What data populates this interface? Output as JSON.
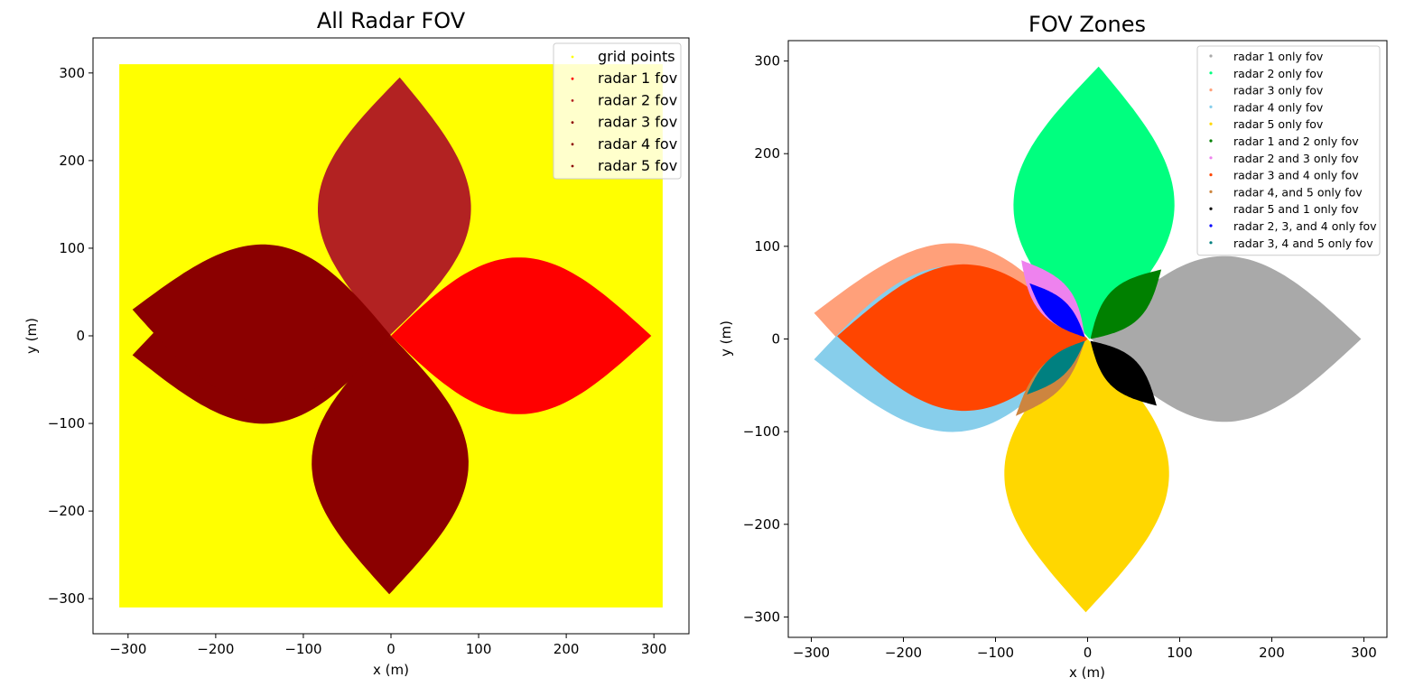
{
  "chart_data": [
    {
      "type": "scatter",
      "title": "All Radar FOV",
      "xlabel": "x (m)",
      "ylabel": "y (m)",
      "xlim": [
        -340,
        340
      ],
      "ylim": [
        -340,
        340
      ],
      "xticks": [
        -300,
        -200,
        -100,
        0,
        100,
        200,
        300
      ],
      "yticks": [
        -300,
        -200,
        -100,
        0,
        100,
        200,
        300
      ],
      "xtick_labels": [
        "−300",
        "−200",
        "−100",
        "0",
        "100",
        "200",
        "300"
      ],
      "ytick_labels": [
        "−300",
        "−200",
        "−100",
        "0",
        "100",
        "200",
        "300"
      ],
      "grid": false,
      "legend_position": "top-right",
      "grid_points_extent": {
        "x": [
          -310,
          310
        ],
        "y": [
          -310,
          310
        ]
      },
      "series": [
        {
          "name": "grid points",
          "color": "#ffff00"
        },
        {
          "name": "radar 1 fov",
          "color": "#ff0000",
          "sensor_at": [
            0,
            0
          ],
          "tip": [
            297,
            0
          ],
          "half_width": 86,
          "heading_deg": 0
        },
        {
          "name": "radar 2 fov",
          "color": "#b22222",
          "sensor_at": [
            -2,
            0
          ],
          "tip": [
            10,
            295
          ],
          "half_width": 84,
          "heading_deg": 88
        },
        {
          "name": "radar 3 fov",
          "color": "#8b0000",
          "sensor_at": [
            0,
            0
          ],
          "tip": [
            -295,
            30
          ],
          "half_width": 86,
          "heading_deg": 174
        },
        {
          "name": "radar 4 fov",
          "color": "#8b0000",
          "sensor_at": [
            0,
            0
          ],
          "tip": [
            -295,
            -22
          ],
          "half_width": 86,
          "heading_deg": 184
        },
        {
          "name": "radar 5 fov",
          "color": "#8b0000",
          "sensor_at": [
            0,
            0
          ],
          "tip": [
            -2,
            -295
          ],
          "half_width": 86,
          "heading_deg": 270
        }
      ]
    },
    {
      "type": "scatter",
      "title": "FOV Zones",
      "xlabel": "x (m)",
      "ylabel": "y (m)",
      "xlim": [
        -325,
        325
      ],
      "ylim": [
        -322,
        322
      ],
      "xticks": [
        -300,
        -200,
        -100,
        0,
        100,
        200,
        300
      ],
      "yticks": [
        -300,
        -200,
        -100,
        0,
        100,
        200,
        300
      ],
      "xtick_labels": [
        "−300",
        "−200",
        "−100",
        "0",
        "100",
        "200",
        "300"
      ],
      "ytick_labels": [
        "−300",
        "−200",
        "−100",
        "0",
        "100",
        "200",
        "300"
      ],
      "grid": false,
      "legend_position": "top-right",
      "series": [
        {
          "name": "radar 1 only fov",
          "color": "#a9a9a9"
        },
        {
          "name": "radar 2 only fov",
          "color": "#00ff7f"
        },
        {
          "name": "radar 3 only fov",
          "color": "#ffa07a"
        },
        {
          "name": "radar 4 only fov",
          "color": "#87ceeb"
        },
        {
          "name": "radar 5 only fov",
          "color": "#ffd700"
        },
        {
          "name": "radar 1 and 2 only fov",
          "color": "#008000"
        },
        {
          "name": "radar 2 and 3 only fov",
          "color": "#ee82ee"
        },
        {
          "name": "radar 3 and 4 only fov",
          "color": "#ff4500"
        },
        {
          "name": "radar 4, and 5 only fov",
          "color": "#cd853f"
        },
        {
          "name": "radar 5 and 1 only fov",
          "color": "#000000"
        },
        {
          "name": "radar 2, 3, and 4 only fov",
          "color": "#0000ff"
        },
        {
          "name": "radar 3, 4 and 5 only fov",
          "color": "#008080"
        }
      ],
      "regions": [
        {
          "series": "radar 1 only fov",
          "sensor_at": [
            4,
            0
          ],
          "tip": [
            297,
            0
          ],
          "half_width": 86,
          "heading_deg": 0
        },
        {
          "series": "radar 2 only fov",
          "sensor_at": [
            2,
            0
          ],
          "tip": [
            12,
            294
          ],
          "half_width": 84,
          "heading_deg": 88
        },
        {
          "series": "radar 3 only fov",
          "sensor_at": [
            0,
            0
          ],
          "tip": [
            -297,
            28
          ],
          "half_width": 86,
          "heading_deg": 174
        },
        {
          "series": "radar 4 only fov",
          "sensor_at": [
            0,
            0
          ],
          "tip": [
            -297,
            -22
          ],
          "half_width": 86,
          "heading_deg": 184
        },
        {
          "series": "radar 5 only fov",
          "sensor_at": [
            0,
            0
          ],
          "tip": [
            -2,
            -295
          ],
          "half_width": 86,
          "heading_deg": 270
        },
        {
          "series": "radar 3 and 4 only fov",
          "sensor_at": [
            0,
            0
          ],
          "tip": [
            -272,
            3
          ],
          "half_width": 76,
          "heading_deg": 179
        },
        {
          "series": "radar 1 and 2 only fov",
          "sensor_at": [
            3,
            0
          ],
          "tip": [
            80,
            75
          ],
          "half_width": 20,
          "heading_deg": 44
        },
        {
          "series": "radar 5 and 1 only fov",
          "sensor_at": [
            3,
            -2
          ],
          "tip": [
            75,
            -72
          ],
          "half_width": 18,
          "heading_deg": -44
        },
        {
          "series": "radar 2 and 3 only fov",
          "sensor_at": [
            -3,
            2
          ],
          "tip": [
            -72,
            85
          ],
          "half_width": 19,
          "heading_deg": 131
        },
        {
          "series": "radar 2, 3, and 4 only fov",
          "sensor_at": [
            -3,
            2
          ],
          "tip": [
            -63,
            60
          ],
          "half_width": 12,
          "heading_deg": 136
        },
        {
          "series": "radar 4, and 5 only fov",
          "sensor_at": [
            -3,
            -2
          ],
          "tip": [
            -78,
            -83
          ],
          "half_width": 15,
          "heading_deg": -132
        },
        {
          "series": "radar 3, 4 and 5 only fov",
          "sensor_at": [
            -3,
            -2
          ],
          "tip": [
            -66,
            -60
          ],
          "half_width": 11,
          "heading_deg": -138
        }
      ]
    }
  ]
}
